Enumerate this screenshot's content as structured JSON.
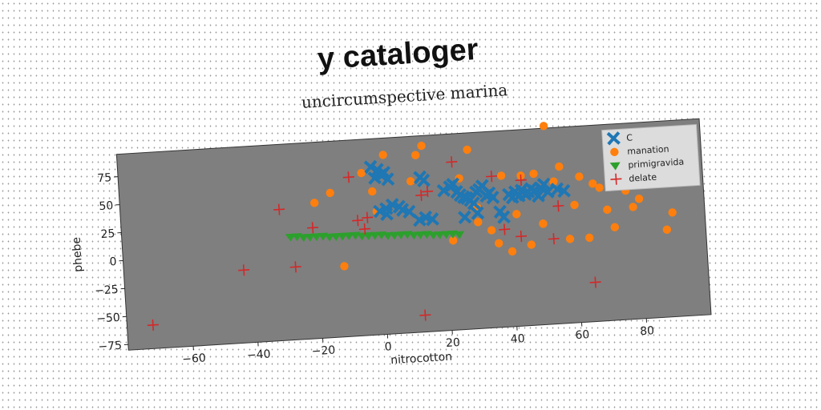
{
  "chart_data": {
    "type": "scatter",
    "suptitle": "y cataloger",
    "title": "uncircumspective marina",
    "xlabel": "nitrocotton",
    "ylabel": "phebe",
    "xlim": [
      -80,
      100
    ],
    "ylim": [
      -80,
      95
    ],
    "xticks": [
      -60,
      -40,
      -20,
      0,
      20,
      40,
      60,
      80
    ],
    "yticks": [
      -75,
      -50,
      -25,
      0,
      25,
      50,
      75
    ],
    "grid": false,
    "legend_position": "top-right",
    "series": [
      {
        "name": "C",
        "marker": "x-thick",
        "color": "#1f77b4",
        "x": [
          -2,
          0,
          2,
          -1,
          1,
          3,
          0,
          2,
          13,
          14,
          12,
          7,
          9,
          4,
          6,
          2,
          16,
          14,
          20,
          22,
          24,
          23,
          26,
          25,
          28,
          27,
          30,
          32,
          31,
          34,
          33,
          35,
          29,
          37,
          38,
          40,
          41,
          42,
          43,
          44,
          45,
          46,
          47,
          48,
          49,
          50,
          51,
          52,
          55,
          57,
          30,
          26
        ],
        "y": [
          70,
          67,
          64,
          60,
          62,
          58,
          30,
          27,
          58,
          55,
          20,
          30,
          28,
          35,
          33,
          32,
          20,
          22,
          45,
          48,
          43,
          50,
          38,
          40,
          35,
          37,
          42,
          47,
          44,
          40,
          38,
          36,
          32,
          23,
          18,
          38,
          35,
          40,
          36,
          41,
          37,
          39,
          42,
          40,
          35,
          42,
          45,
          38,
          40,
          38,
          23,
          20
        ]
      },
      {
        "name": "manation",
        "marker": "circle",
        "color": "#ff7f0e",
        "x": [
          -20,
          -15,
          -12,
          -5,
          -2,
          -1,
          2,
          10,
          12,
          14,
          22,
          25,
          28,
          30,
          34,
          36,
          38,
          40,
          42,
          44,
          46,
          48,
          50,
          52,
          54,
          56,
          58,
          60,
          62,
          64,
          66,
          68,
          70,
          72,
          74,
          76,
          78,
          80,
          82,
          84,
          86,
          88,
          90,
          50,
          30
        ],
        "y": [
          41,
          49,
          -17,
          65,
          48,
          30,
          80,
          55,
          78,
          86,
          0,
          55,
          80,
          28,
          7,
          -5,
          55,
          -13,
          20,
          54,
          -8,
          55,
          10,
          97,
          47,
          60,
          -5,
          25,
          50,
          -5,
          43,
          39,
          19,
          3,
          45,
          35,
          20,
          27,
          67,
          41,
          57,
          -2,
          13,
          10,
          15
        ]
      },
      {
        "name": "primigravida",
        "marker": "triangle-down",
        "color": "#2ca02c",
        "x": [
          -28,
          -26,
          -24,
          -22,
          -20,
          -18,
          -16,
          -14,
          -12,
          -10,
          -8,
          -6,
          -4,
          -2,
          0,
          2,
          4,
          6,
          8,
          10,
          12,
          14,
          16,
          18,
          20,
          22,
          24
        ],
        "y": [
          12,
          12,
          11,
          11,
          11,
          11,
          10,
          10,
          10,
          10,
          10,
          9,
          9,
          9,
          9,
          8,
          8,
          8,
          8,
          7,
          7,
          7,
          6,
          6,
          6,
          6,
          5
        ]
      },
      {
        "name": "delate",
        "marker": "plus",
        "color": "#d62728",
        "x": [
          -72,
          -43,
          -31,
          -27,
          -21,
          -9,
          -7,
          -5,
          -4,
          12,
          13,
          15,
          23,
          35,
          38,
          43,
          44,
          53,
          55,
          65
        ],
        "y": [
          -59,
          -15,
          37,
          -15,
          19,
          62,
          23,
          15,
          25,
          -65,
          42,
          45,
          70,
          55,
          7,
          0,
          50,
          -4,
          25,
          -45
        ]
      }
    ]
  }
}
